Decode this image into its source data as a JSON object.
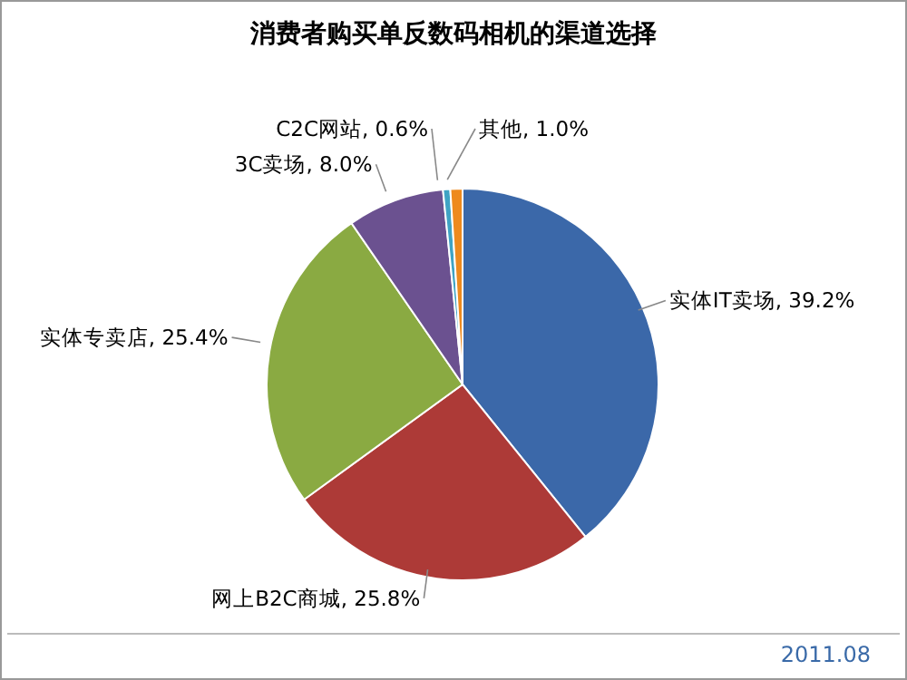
{
  "chart_data": {
    "type": "pie",
    "title": "消费者购买单反数码相机的渠道选择",
    "categories": [
      "实体IT卖场",
      "网上B2C商城",
      "实体专卖店",
      "3C卖场",
      "C2C网站",
      "其他"
    ],
    "values": [
      39.2,
      25.8,
      25.4,
      8.0,
      0.6,
      1.0
    ],
    "value_labels": [
      "39.2%",
      "25.8%",
      "25.4%",
      "8.0%",
      "0.6%",
      "1.0%"
    ],
    "colors": [
      "#3b68a9",
      "#ad3a37",
      "#8aaa42",
      "#6b5190",
      "#3fa3c4",
      "#ee8a1e"
    ],
    "annotations": [
      "2011.08"
    ]
  }
}
